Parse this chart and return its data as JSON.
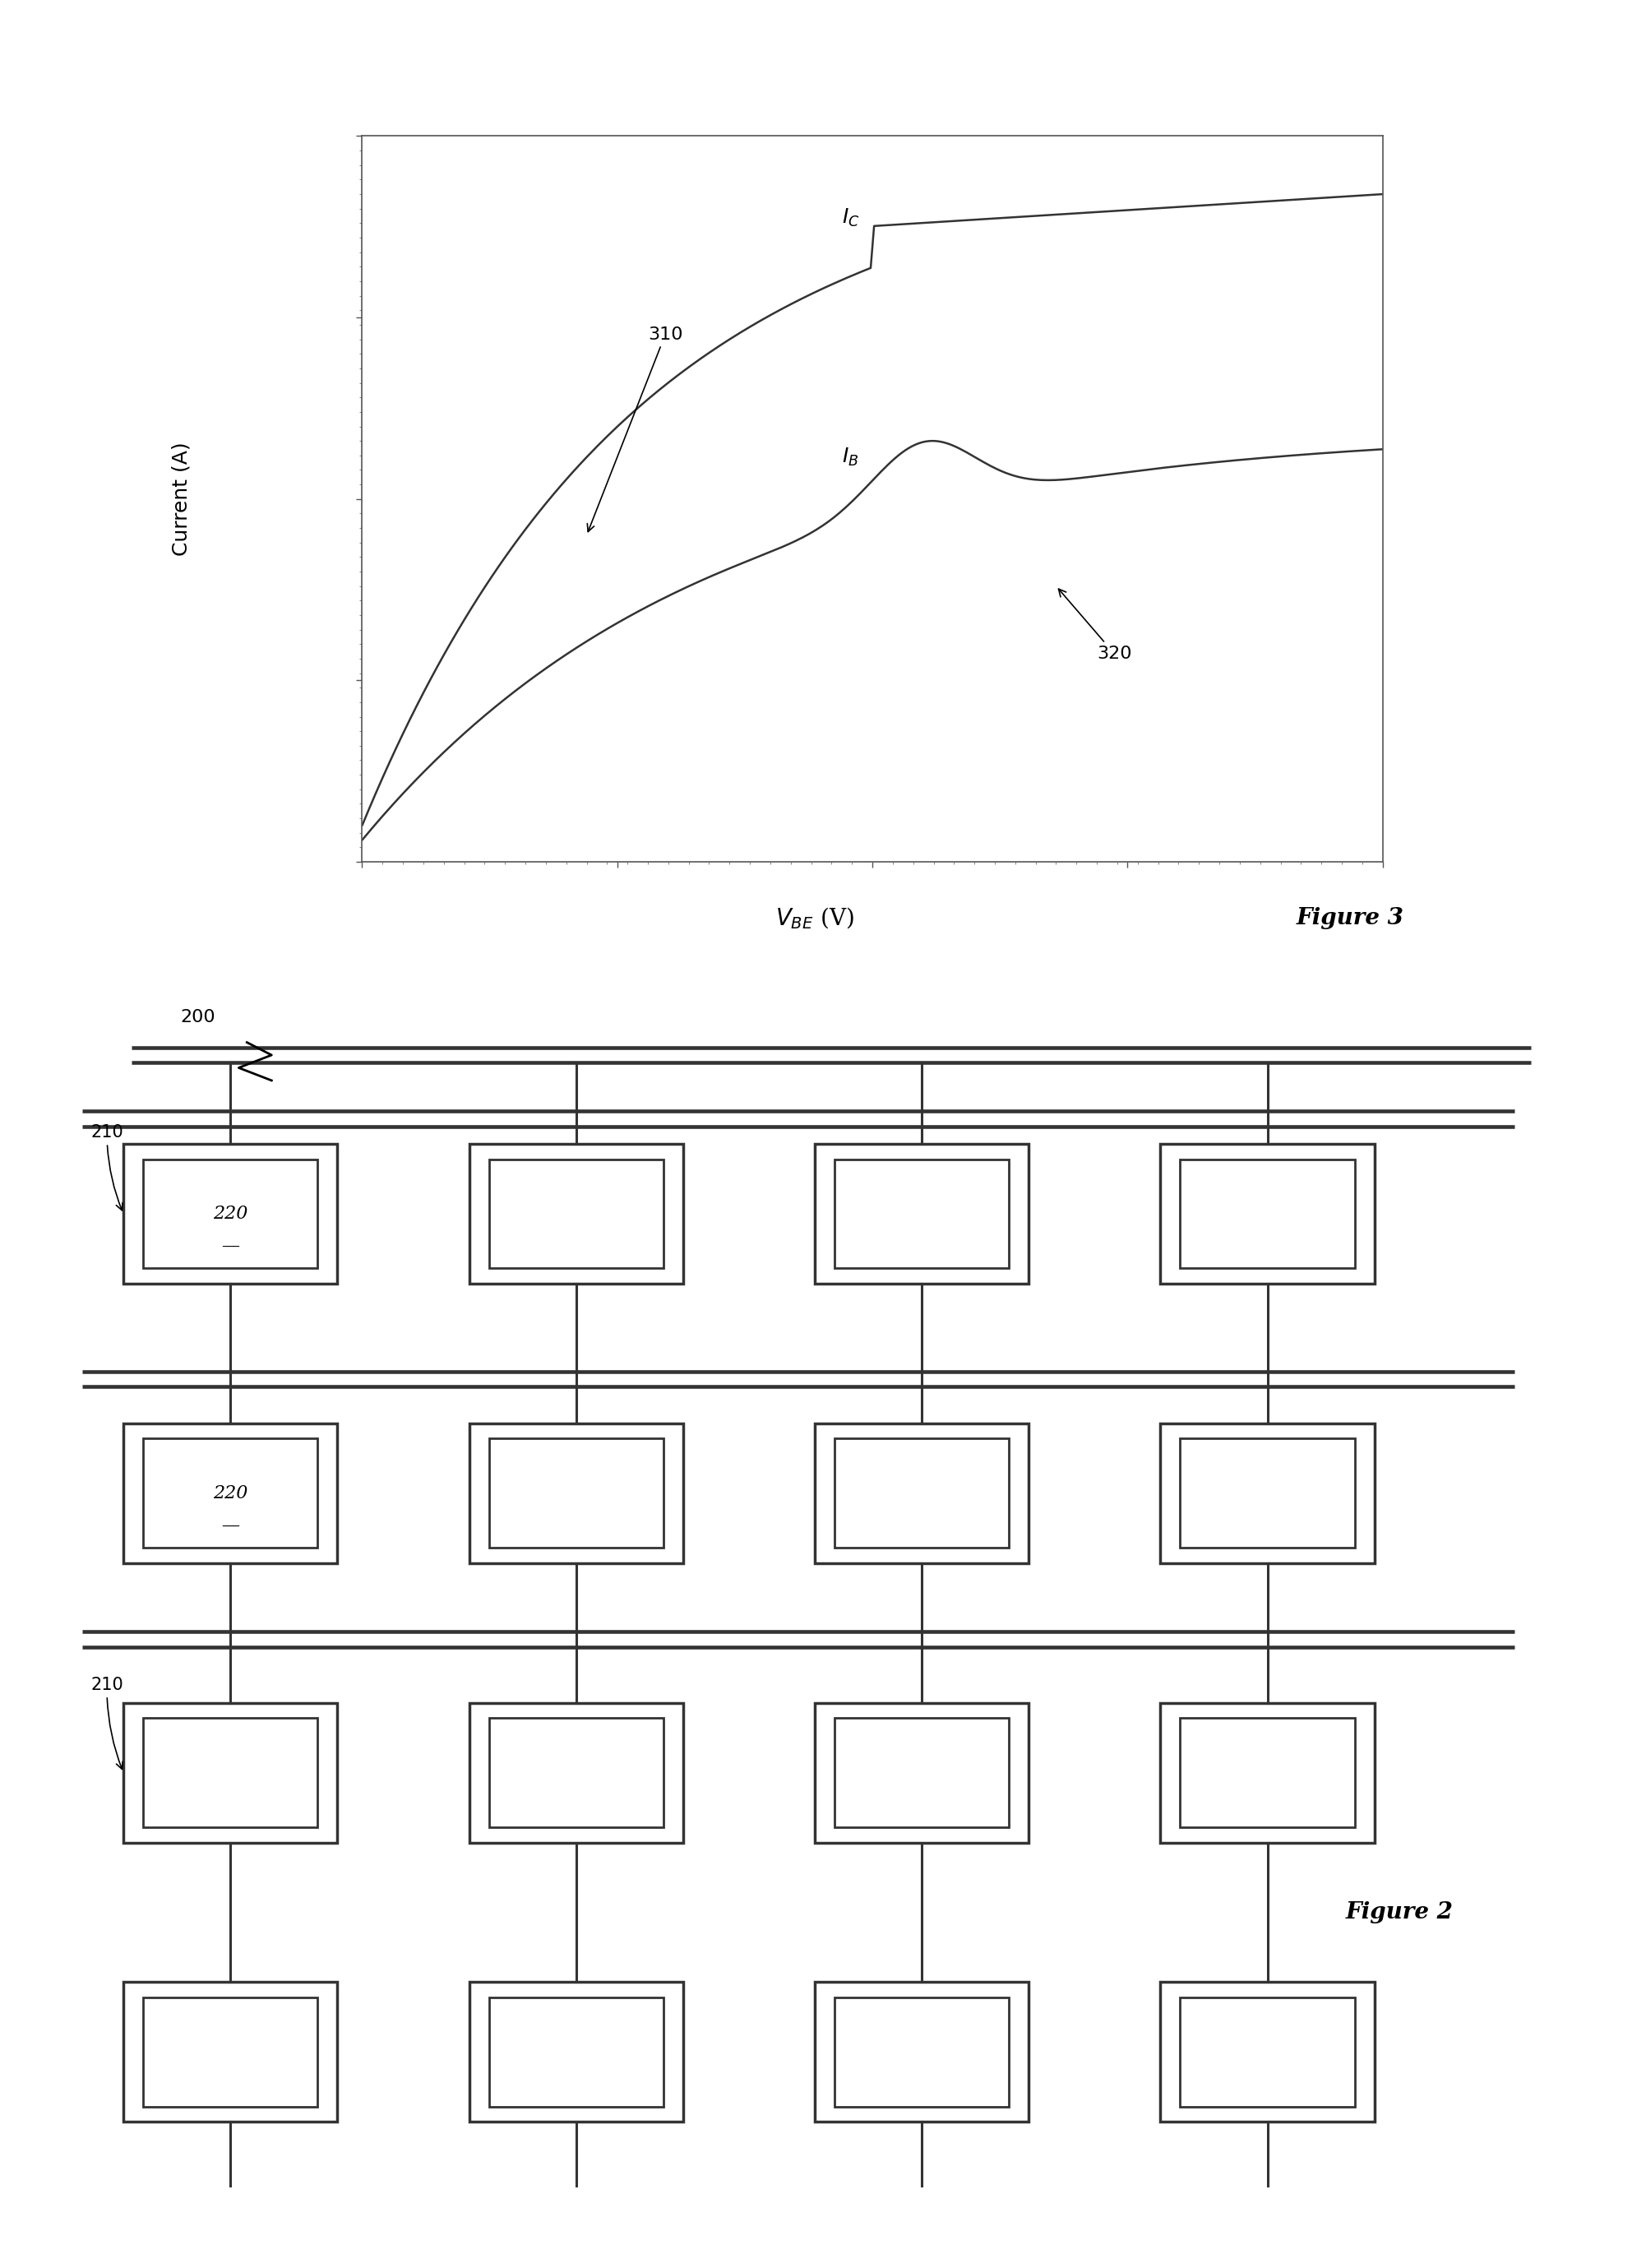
{
  "fig_width": 20.02,
  "fig_height": 27.58,
  "bg_color": "#ffffff",
  "graph_title": "Figure 3",
  "graph2_title": "Figure 2",
  "xlabel": "V",
  "xlabel_sub": "BE",
  "xlabel_unit": "(V)",
  "ylabel": "Current (A)",
  "label_IC": "I",
  "label_IC_sub": "C",
  "label_IB": "I",
  "label_IB_sub": "B",
  "label_310": "310",
  "label_320": "320",
  "label_200": "200",
  "label_210_1": "210",
  "label_210_2": "210",
  "label_220_1": "220",
  "label_220_2": "220",
  "line_color": "#333333",
  "box_color": "#555555",
  "grid_color": "#cccccc"
}
